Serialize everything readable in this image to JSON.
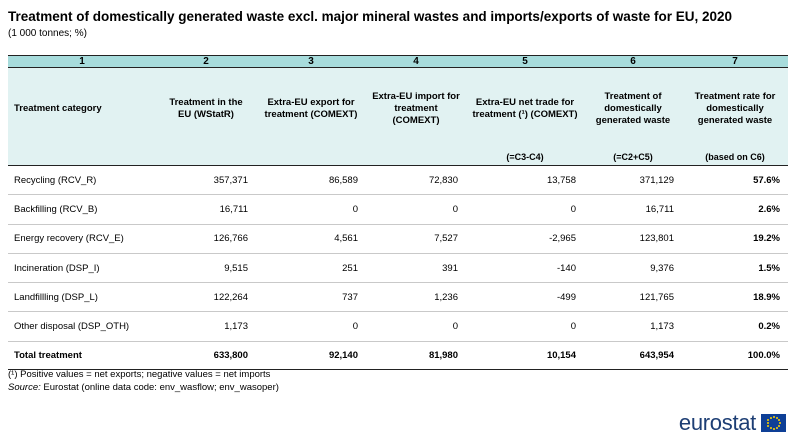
{
  "title": "Treatment of domestically generated waste excl. major mineral wastes and imports/exports of waste for EU, 2020",
  "subtitle": "(1 000 tonnes; %)",
  "table": {
    "column_numbers": [
      "1",
      "2",
      "3",
      "4",
      "5",
      "6",
      "7"
    ],
    "headers": [
      "Treatment category",
      "Treatment in the EU (WStatR)",
      "Extra-EU export for treatment (COMEXT)",
      "Extra-EU import for treatment (COMEXT)",
      "Extra-EU net trade for treatment (¹) (COMEXT)",
      "Treatment of domestically generated waste",
      "Treatment rate for domestically generated waste"
    ],
    "formulas": [
      "",
      "",
      "",
      "",
      "(=C3-C4)",
      "(=C2+C5)",
      "(based on C6)"
    ],
    "rows": [
      [
        "Recycling (RCV_R)",
        "357,371",
        "86,589",
        "72,830",
        "13,758",
        "371,129",
        "57.6%"
      ],
      [
        "Backfilling (RCV_B)",
        "16,711",
        "0",
        "0",
        "0",
        "16,711",
        "2.6%"
      ],
      [
        "Energy recovery (RCV_E)",
        "126,766",
        "4,561",
        "7,527",
        "-2,965",
        "123,801",
        "19.2%"
      ],
      [
        "Incineration (DSP_I)",
        "9,515",
        "251",
        "391",
        "-140",
        "9,376",
        "1.5%"
      ],
      [
        "Landfillling (DSP_L)",
        "122,264",
        "737",
        "1,236",
        "-499",
        "121,765",
        "18.9%"
      ],
      [
        "Other disposal (DSP_OTH)",
        "1,173",
        "0",
        "0",
        "0",
        "1,173",
        "0.2%"
      ]
    ],
    "total": [
      "Total treatment",
      "633,800",
      "92,140",
      "81,980",
      "10,154",
      "643,954",
      "100.0%"
    ]
  },
  "footnote": "(¹) Positive values = net exports; negative values = net imports",
  "source": {
    "label": "Source:",
    "text": " Eurostat (online data code: env_wasflow; env_wasoper)"
  },
  "logo": {
    "text": "eurostat",
    "color": "#1d3e74",
    "flag_color": "#0e3f96",
    "star_color": "#ffd400"
  },
  "colors": {
    "header_dark": "#a7dcdc",
    "header_light": "#e1f2f2"
  }
}
